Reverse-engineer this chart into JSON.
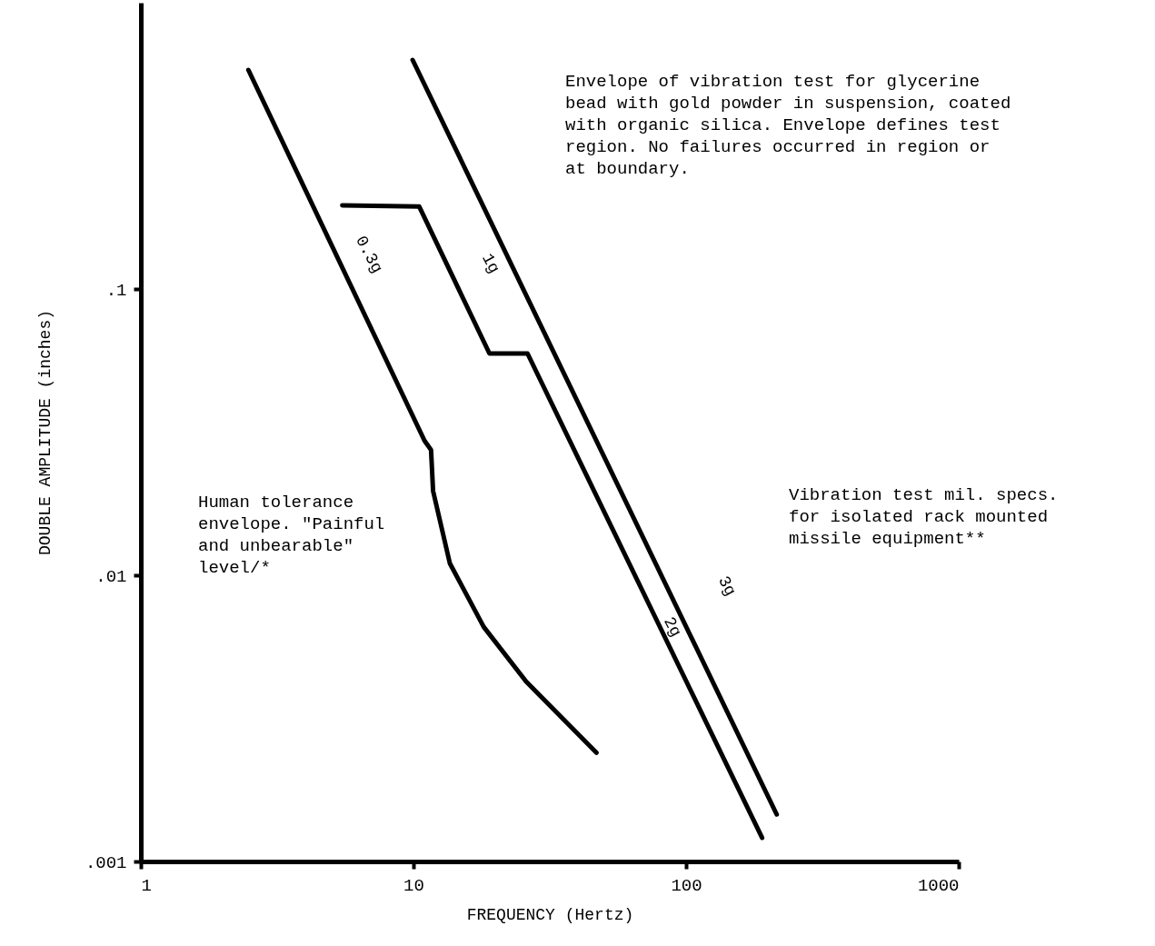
{
  "chart_data": {
    "type": "line",
    "xlabel": "FREQUENCY  (Hertz)",
    "ylabel": "DOUBLE AMPLITUDE (inches)",
    "log": "xy",
    "xlim": [
      1,
      1000
    ],
    "ylim": [
      0.001,
      1
    ],
    "xticks": [
      1,
      10,
      100,
      1000
    ],
    "yticks": [
      {
        "value": 0.001,
        "label": ".001"
      },
      {
        "value": 0.01,
        "label": ".01"
      },
      {
        "value": 0.1,
        "label": ".1"
      }
    ],
    "grid": false,
    "marker": "none",
    "line_style": "solid",
    "series": [
      {
        "color": "#000000",
        "x": [
          2.48,
          10.98,
          11.6,
          11.8,
          13.6,
          18.1,
          25.9,
          46.9
        ],
        "values": [
          0.582,
          0.0295,
          0.0274,
          0.0197,
          0.011,
          0.0066,
          0.00425,
          0.0024
        ]
      },
      {
        "color": "#000000",
        "x": [
          5.48,
          10.5,
          19.0,
          26.2,
          190
        ],
        "values": [
          0.196,
          0.194,
          0.0595,
          0.0595,
          0.00121
        ]
      },
      {
        "color": "#000000",
        "x": [
          9.93,
          215
        ],
        "values": [
          0.631,
          0.00146
        ]
      }
    ],
    "annotations": [
      "Envelope of vibration test for glycerine\nbead with gold powder in suspension, coated\nwith organic silica.  Envelope defines test\nregion.  No failures occurred in region or\nat boundary.",
      "Vibration test mil. specs.\nfor isolated rack mounted\nmissile equipment**",
      "Human tolerance\nenvelope.  \"Painful\nand unbearable\"\nlevel/*",
      "0.3g",
      "1g",
      "2g",
      "3g"
    ]
  }
}
